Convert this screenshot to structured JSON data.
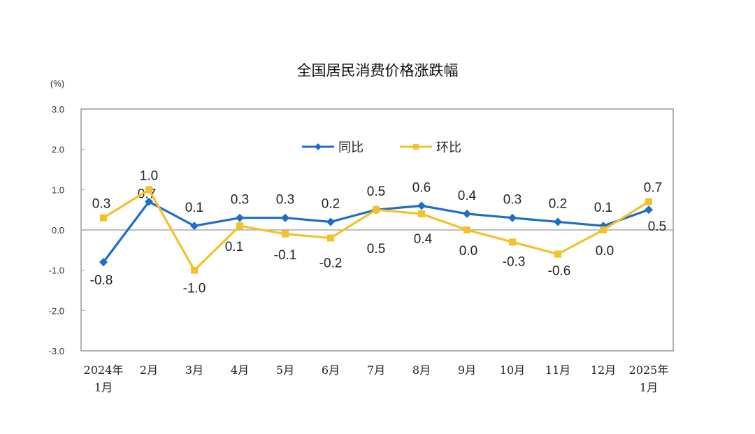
{
  "chart_data": {
    "type": "line",
    "title": "全国居民消费价格涨跌幅",
    "ylabel": "(%)",
    "ylim": [
      -3.0,
      3.0
    ],
    "yticks": [
      "3.0",
      "2.0",
      "1.0",
      "0.0",
      "-1.0",
      "-2.0",
      "-3.0"
    ],
    "categories": [
      [
        "2024年",
        "1月"
      ],
      [
        "2月"
      ],
      [
        "3月"
      ],
      [
        "4月"
      ],
      [
        "5月"
      ],
      [
        "6月"
      ],
      [
        "7月"
      ],
      [
        "8月"
      ],
      [
        "9月"
      ],
      [
        "10月"
      ],
      [
        "11月"
      ],
      [
        "12月"
      ],
      [
        "2025年",
        "1月"
      ]
    ],
    "legend_position": "top-center",
    "series": [
      {
        "name": "同比",
        "color": "#1f6dc4",
        "marker": "diamond",
        "values": [
          -0.8,
          0.7,
          0.1,
          0.3,
          0.3,
          0.2,
          0.5,
          0.6,
          0.4,
          0.3,
          0.2,
          0.1,
          0.5
        ],
        "labels": [
          "-0.8",
          "0.7",
          "0.1",
          "0.3",
          "0.3",
          "0.2",
          "0.5",
          "0.6",
          "0.4",
          "0.3",
          "0.2",
          "0.1",
          "0.5"
        ]
      },
      {
        "name": "环比",
        "color": "#f5c12a",
        "marker": "square",
        "values": [
          0.3,
          1.0,
          -1.0,
          0.1,
          -0.1,
          -0.2,
          0.5,
          0.4,
          0.0,
          -0.3,
          -0.6,
          0.0,
          0.7
        ],
        "labels": [
          "0.3",
          "1.0",
          "-1.0",
          "0.1",
          "-0.1",
          "-0.2",
          "0.5",
          "0.4",
          "0.0",
          "-0.3",
          "-0.6",
          "0.0",
          "0.7"
        ]
      }
    ]
  }
}
